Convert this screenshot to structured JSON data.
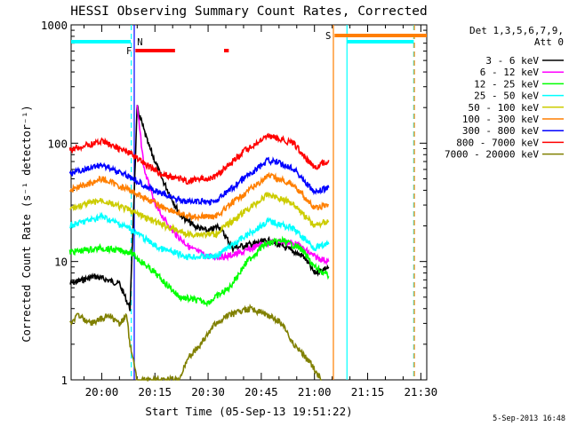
{
  "chart_data": {
    "type": "line",
    "title": "HESSI Observing Summary Count Rates, Corrected",
    "xlabel": "Start Time (05-Sep-13 19:51:22)",
    "ylabel": "Corrected Count Rate (s⁻¹ detector⁻¹)",
    "y_scale": "log",
    "ylim": [
      1,
      1000
    ],
    "xlim": [
      "19:51:22",
      "21:31:40"
    ],
    "y_ticks": [
      {
        "value": 1,
        "label": "1"
      },
      {
        "value": 10,
        "label": "10"
      },
      {
        "value": 100,
        "label": "100"
      },
      {
        "value": 1000,
        "label": "1000"
      }
    ],
    "x_ticks": [
      {
        "value": "20:00",
        "label": "20:00"
      },
      {
        "value": "20:15",
        "label": "20:15"
      },
      {
        "value": "20:30",
        "label": "20:30"
      },
      {
        "value": "20:45",
        "label": "20:45"
      },
      {
        "value": "21:00",
        "label": "21:00"
      },
      {
        "value": "21:15",
        "label": "21:15"
      },
      {
        "value": "21:30",
        "label": "21:30"
      }
    ],
    "legend": {
      "placement": "right",
      "header": [
        "Det 1,3,5,6,7,9,",
        "Att 0"
      ]
    },
    "series": [
      {
        "name": "3 - 6 keV",
        "color": "#000000",
        "x": [
          "19:51",
          "19:58",
          "20:05",
          "20:08",
          "20:10",
          "20:13",
          "20:17",
          "20:22",
          "20:26",
          "20:30",
          "20:33",
          "20:37",
          "20:42",
          "20:47",
          "20:52",
          "20:57",
          "21:00",
          "21:04"
        ],
        "y": [
          6.5,
          7.5,
          6.5,
          4,
          200,
          100,
          50,
          25,
          20,
          18,
          20,
          13,
          14,
          15,
          13,
          11,
          8,
          9
        ]
      },
      {
        "name": "6 - 12 keV",
        "color": "#ff00ff",
        "x": [
          "20:10",
          "20:12",
          "20:15",
          "20:20",
          "20:25",
          "20:30",
          "20:35",
          "20:40",
          "20:45",
          "20:50",
          "20:55",
          "21:00",
          "21:04"
        ],
        "y": [
          200,
          60,
          30,
          18,
          13,
          11,
          11,
          12,
          14,
          15,
          14,
          11,
          10
        ]
      },
      {
        "name": "12 - 25 keV",
        "color": "#00ff00",
        "x": [
          "19:51",
          "20:00",
          "20:08",
          "20:15",
          "20:22",
          "20:30",
          "20:36",
          "20:41",
          "20:46",
          "20:51",
          "20:56",
          "21:00",
          "21:04"
        ],
        "y": [
          12,
          13,
          12,
          8,
          5,
          4.5,
          6,
          10,
          14,
          15,
          13,
          9,
          7.5
        ]
      },
      {
        "name": "25 - 50 keV",
        "color": "#00ffff",
        "x": [
          "19:51",
          "20:00",
          "20:08",
          "20:16",
          "20:24",
          "20:32",
          "20:40",
          "20:47",
          "20:54",
          "21:00",
          "21:04"
        ],
        "y": [
          20,
          24,
          19,
          13,
          11,
          11,
          16,
          22,
          19,
          13,
          14
        ]
      },
      {
        "name": "50 - 100 keV",
        "color": "#cccc00",
        "x": [
          "19:51",
          "20:00",
          "20:08",
          "20:16",
          "20:24",
          "20:32",
          "20:40",
          "20:47",
          "20:54",
          "21:00",
          "21:04"
        ],
        "y": [
          28,
          33,
          27,
          21,
          17,
          17,
          26,
          37,
          31,
          20,
          22
        ]
      },
      {
        "name": "100 - 300 keV",
        "color": "#ff7f00",
        "x": [
          "19:51",
          "20:00",
          "20:08",
          "20:16",
          "20:24",
          "20:32",
          "20:40",
          "20:47",
          "20:54",
          "21:00",
          "21:04"
        ],
        "y": [
          40,
          50,
          40,
          30,
          24,
          24,
          37,
          53,
          45,
          28,
          30
        ]
      },
      {
        "name": "300 - 800 keV",
        "color": "#0000ff",
        "x": [
          "19:51",
          "20:00",
          "20:08",
          "20:16",
          "20:24",
          "20:32",
          "20:40",
          "20:47",
          "20:54",
          "21:00",
          "21:04"
        ],
        "y": [
          55,
          66,
          52,
          38,
          32,
          32,
          50,
          72,
          62,
          38,
          42
        ]
      },
      {
        "name": "800 - 7000 keV",
        "color": "#ff0000",
        "x": [
          "19:51",
          "20:00",
          "20:08",
          "20:16",
          "20:24",
          "20:32",
          "20:40",
          "20:47",
          "20:54",
          "21:00",
          "21:04"
        ],
        "y": [
          88,
          104,
          82,
          56,
          48,
          52,
          85,
          115,
          100,
          62,
          72
        ]
      },
      {
        "name": "7000 - 20000 keV",
        "color": "#808000",
        "x": [
          "19:51",
          "19:53",
          "19:57",
          "20:02",
          "20:05",
          "20:07",
          "20:08",
          "20:10",
          "20:22",
          "20:24",
          "20:28",
          "20:32",
          "20:36",
          "20:42",
          "20:47",
          "20:51",
          "20:54",
          "20:58",
          "21:02"
        ],
        "y": [
          3,
          3.5,
          3,
          3.5,
          3,
          3.5,
          2,
          1,
          1,
          1.5,
          2,
          3,
          3.5,
          4,
          3.5,
          3,
          2,
          1.5,
          1
        ]
      }
    ],
    "annotations": [
      {
        "label": "F",
        "color": "#ff0000",
        "kind": "flag",
        "spans": [
          [
            "20:09:30",
            "20:20:40"
          ],
          [
            "20:34:30",
            "20:35:50"
          ]
        ]
      },
      {
        "label": "N",
        "color": "#00ffff",
        "kind": "flag",
        "spans": [
          [
            "19:51:22",
            "20:08:10"
          ]
        ]
      },
      {
        "label": "S",
        "color": "#ff7f00",
        "kind": "flag",
        "spans": [
          [
            "21:05:40",
            "21:31:40"
          ]
        ]
      },
      {
        "label": "",
        "color": "#00ffff",
        "kind": "flag",
        "spans": [
          [
            "21:09:10",
            "21:28:00"
          ]
        ]
      }
    ],
    "vlines": [
      {
        "x": "20:08:20",
        "color": "#00ffff",
        "dash": true
      },
      {
        "x": "20:09:10",
        "color": "#0000ff",
        "dash": false
      },
      {
        "x": "21:05:20",
        "color": "#ff7f00",
        "dash": false
      },
      {
        "x": "21:09:10",
        "color": "#00ffff",
        "dash": false
      },
      {
        "x": "21:28:00",
        "color": "#00ffff",
        "dash": true
      },
      {
        "x": "21:28:10",
        "color": "#ff7f00",
        "dash": true
      }
    ],
    "footer_date": "5-Sep-2013 16:48"
  }
}
